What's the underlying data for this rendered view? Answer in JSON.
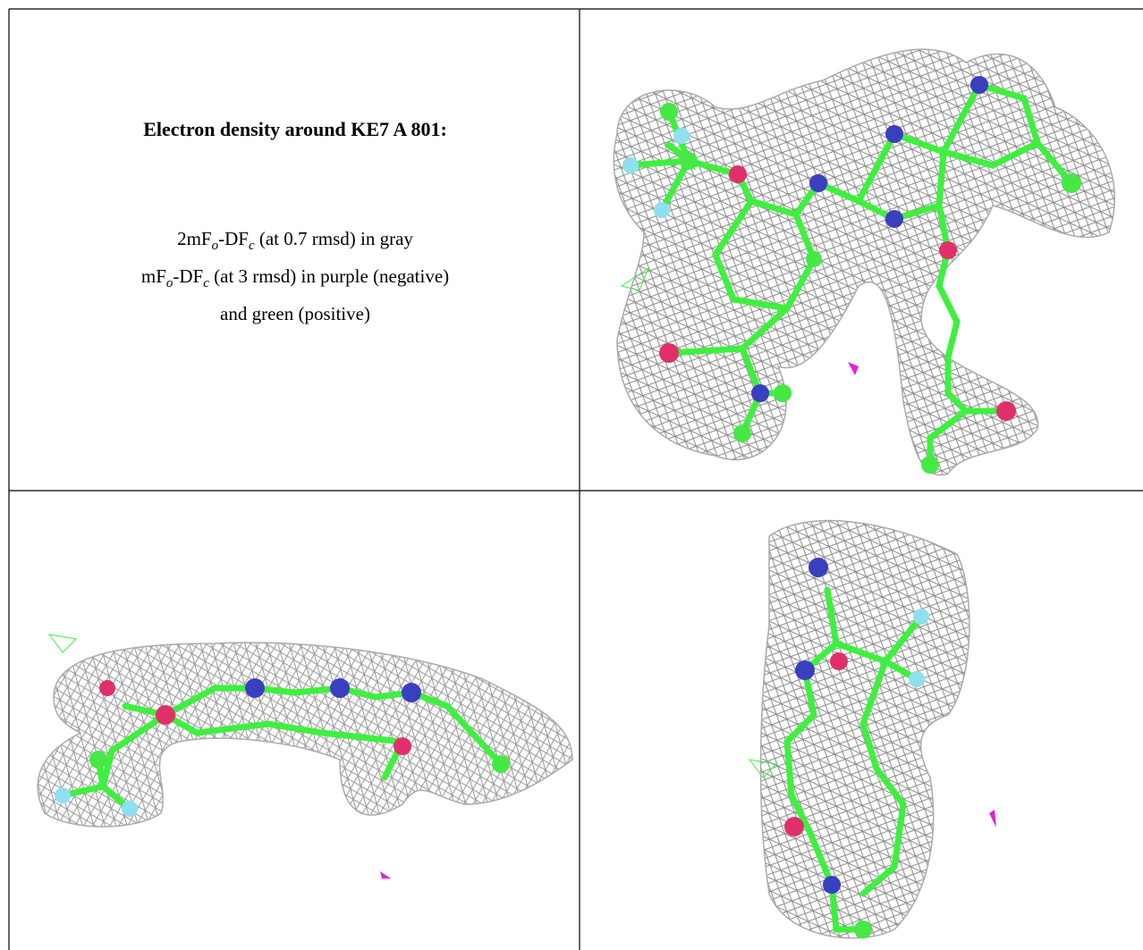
{
  "caption": {
    "title": "Electron density around KE7 A 801:",
    "lines": [
      [
        "2mF",
        "o",
        "-DF",
        "c",
        " (at 0.7 rmsd) in gray"
      ],
      [
        "mF",
        "o",
        "-DF",
        "c",
        " (at 3 rmsd) in purple (negative)"
      ],
      [
        "and green (positive)"
      ]
    ]
  }
}
